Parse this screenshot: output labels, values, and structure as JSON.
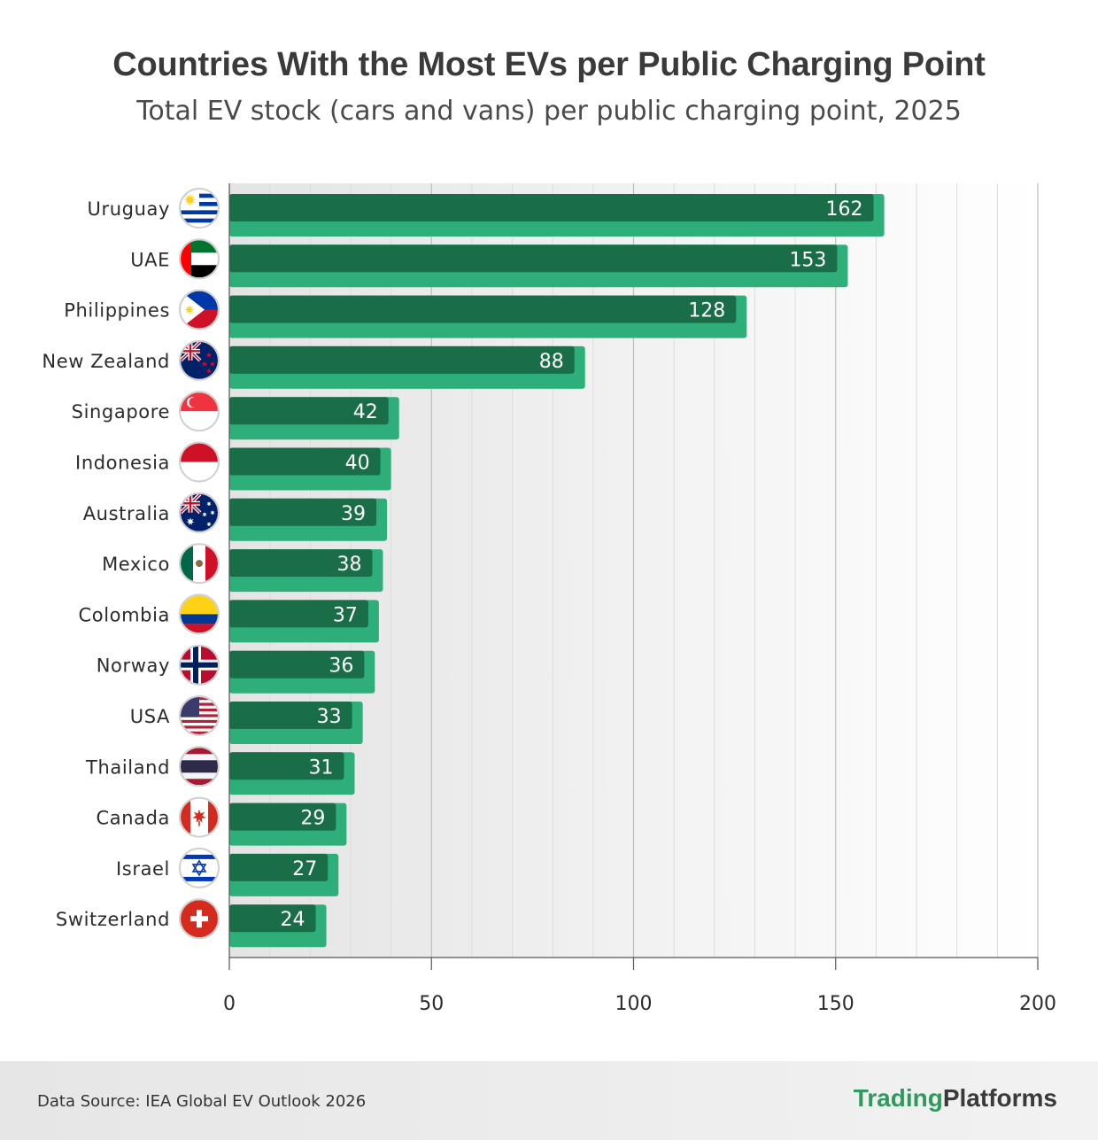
{
  "chart_data": {
    "type": "bar",
    "orientation": "horizontal",
    "title": "Countries With the Most EVs per Public Charging Point",
    "subtitle": "Total EV stock (cars and vans) per public charging point, 2025",
    "categories": [
      "Uruguay",
      "UAE",
      "Philippines",
      "New Zealand",
      "Singapore",
      "Indonesia",
      "Australia",
      "Mexico",
      "Colombia",
      "Norway",
      "USA",
      "Thailand",
      "Canada",
      "Israel",
      "Switzerland"
    ],
    "values": [
      162,
      153,
      128,
      88,
      42,
      40,
      39,
      38,
      37,
      36,
      33,
      31,
      29,
      27,
      24
    ],
    "flag_icons": [
      "uruguay-flag-icon",
      "uae-flag-icon",
      "philippines-flag-icon",
      "new-zealand-flag-icon",
      "singapore-flag-icon",
      "indonesia-flag-icon",
      "australia-flag-icon",
      "mexico-flag-icon",
      "colombia-flag-icon",
      "norway-flag-icon",
      "usa-flag-icon",
      "thailand-flag-icon",
      "canada-flag-icon",
      "israel-flag-icon",
      "switzerland-flag-icon"
    ],
    "xlim": [
      0,
      200
    ],
    "xticks": [
      0,
      50,
      100,
      150,
      200
    ],
    "xlabel": "",
    "ylabel": "",
    "grid": true,
    "colors": {
      "bar_dark": "#1a6e47",
      "bar_light": "#2eaf7a"
    }
  },
  "footer": {
    "source": "Data Source: IEA Global EV Outlook 2026",
    "brand_part1": "Trading",
    "brand_part2": "Platforms"
  }
}
